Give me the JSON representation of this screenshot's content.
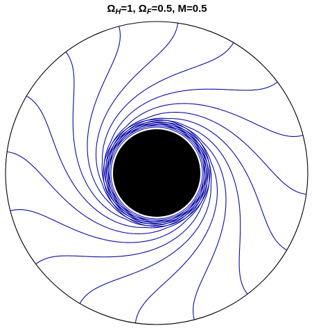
{
  "figure": {
    "title": {
      "omega_symbol": "Ω",
      "h_subscript": "H",
      "h_value": "=1, ",
      "f_subscript": "F",
      "f_value": "=0.5, M=0.5"
    },
    "parameters": {
      "omega_H": 1,
      "omega_F": 0.5,
      "M": 0.5
    },
    "line_count": 16,
    "colors": {
      "field_line": "#0a0aa8",
      "black_hole": "#000000",
      "boundary": "#000000",
      "background": "#ffffff",
      "horizon_ring": "#ffffff"
    }
  }
}
